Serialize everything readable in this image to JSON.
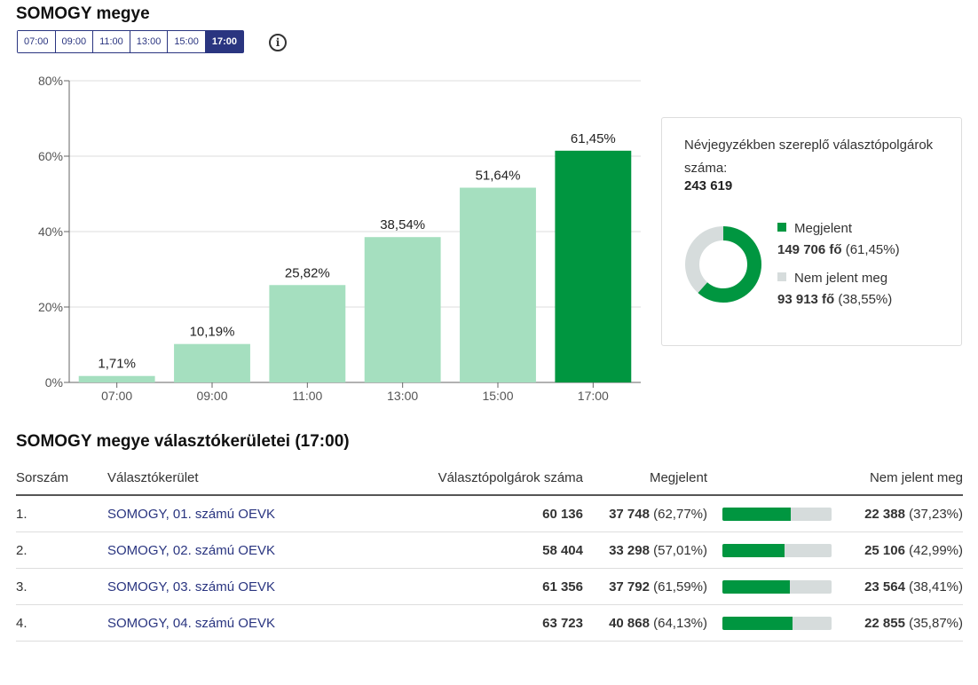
{
  "title": "SOMOGY megye",
  "tabs": [
    "07:00",
    "09:00",
    "11:00",
    "13:00",
    "15:00",
    "17:00"
  ],
  "active_tab": "17:00",
  "colors": {
    "highlight": "#009640",
    "bar": "#a5dfbf",
    "not_voted": "#d6dcdc",
    "accent": "#2a3580"
  },
  "chart_data": {
    "type": "bar",
    "categories": [
      "07:00",
      "09:00",
      "11:00",
      "13:00",
      "15:00",
      "17:00"
    ],
    "values": [
      1.71,
      10.19,
      25.82,
      38.54,
      51.64,
      61.45
    ],
    "value_labels": [
      "1,71%",
      "10,19%",
      "25,82%",
      "38,54%",
      "51,64%",
      "61,45%"
    ],
    "ylim": [
      0,
      80
    ],
    "yticks": [
      0,
      20,
      40,
      60,
      80
    ],
    "ytick_labels": [
      "0%",
      "20%",
      "40%",
      "60%",
      "80%"
    ],
    "highlight_index": 5,
    "grid": true
  },
  "summary": {
    "registered_label": "Névjegyzékben szereplő választópolgárok száma:",
    "registered_value": "243 619",
    "voted_label": "Megjelent",
    "voted_value": "149 706 fő",
    "voted_pct": "(61,45%)",
    "not_voted_label": "Nem jelent meg",
    "not_voted_value": "93 913 fő",
    "not_voted_pct": "(38,55%)",
    "voted_fraction": 0.6145
  },
  "districts": {
    "title": "SOMOGY megye választókerületei (17:00)",
    "columns": [
      "Sorszám",
      "Választókerület",
      "Választópolgárok száma",
      "Megjelent",
      "Nem jelent meg"
    ],
    "rows": [
      {
        "no": "1.",
        "name": "SOMOGY, 01. számú OEVK",
        "voters": "60 136",
        "voted": "37 748",
        "voted_pct": "(62,77%)",
        "not_voted": "22 388",
        "not_pct": "(37,23%)",
        "frac": 0.6277
      },
      {
        "no": "2.",
        "name": "SOMOGY, 02. számú OEVK",
        "voters": "58 404",
        "voted": "33 298",
        "voted_pct": "(57,01%)",
        "not_voted": "25 106",
        "not_pct": "(42,99%)",
        "frac": 0.5701
      },
      {
        "no": "3.",
        "name": "SOMOGY, 03. számú OEVK",
        "voters": "61 356",
        "voted": "37 792",
        "voted_pct": "(61,59%)",
        "not_voted": "23 564",
        "not_pct": "(38,41%)",
        "frac": 0.6159
      },
      {
        "no": "4.",
        "name": "SOMOGY, 04. számú OEVK",
        "voters": "63 723",
        "voted": "40 868",
        "voted_pct": "(64,13%)",
        "not_voted": "22 855",
        "not_pct": "(35,87%)",
        "frac": 0.6413
      }
    ]
  }
}
